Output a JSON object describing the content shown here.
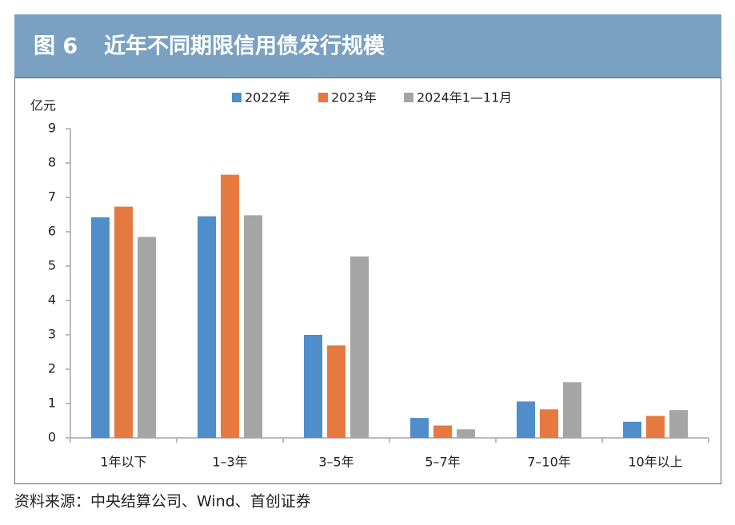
{
  "chart_data": {
    "type": "bar",
    "figure_label": "图 6",
    "title": "近年不同期限信用债发行规模",
    "y_label": "亿元",
    "source": "资料来源：中央结算公司、Wind、首创证券",
    "categories": [
      "1年以下",
      "1–3年",
      "3–5年",
      "5–7年",
      "7–10年",
      "10年以上"
    ],
    "series": [
      {
        "name": "2022年",
        "color": "#4f8ecb",
        "values": [
          6.42,
          6.45,
          3.0,
          0.58,
          1.06,
          0.47
        ]
      },
      {
        "name": "2023年",
        "color": "#e6793f",
        "values": [
          6.73,
          7.66,
          2.69,
          0.36,
          0.83,
          0.64
        ]
      },
      {
        "name": "2024年1—11月",
        "color": "#a5a5a5",
        "values": [
          5.85,
          6.48,
          5.28,
          0.25,
          1.62,
          0.81
        ]
      }
    ],
    "ylim": [
      0,
      9
    ],
    "yticks": [
      0,
      1,
      2,
      3,
      4,
      5,
      6,
      7,
      8,
      9
    ],
    "legend": "top"
  }
}
